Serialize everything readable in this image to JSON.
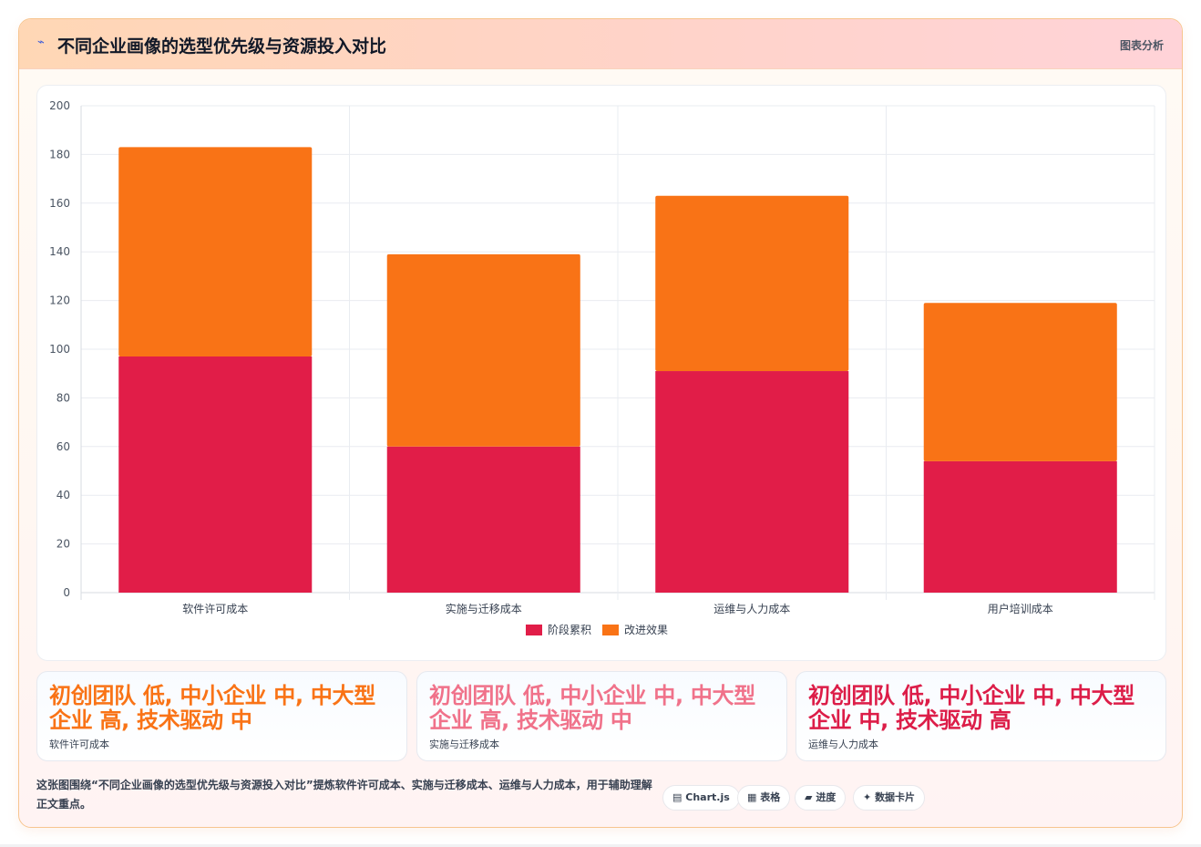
{
  "header": {
    "icon": "⌁",
    "title": "不同企业画像的选型优先级与资源投入对比",
    "tag": "图表分析"
  },
  "chart_data": {
    "type": "bar",
    "stacked": true,
    "categories": [
      "软件许可成本",
      "实施与迁移成本",
      "运维与人力成本",
      "用户培训成本"
    ],
    "series": [
      {
        "name": "阶段累积",
        "color": "#e11d48",
        "values": [
          97,
          60,
          91,
          54
        ]
      },
      {
        "name": "改进效果",
        "color": "#f97316",
        "values": [
          86,
          79,
          72,
          65
        ]
      }
    ],
    "ylim": [
      0,
      200
    ],
    "yticks": [
      0,
      20,
      40,
      60,
      80,
      100,
      120,
      140,
      160,
      180,
      200
    ],
    "grid": true,
    "legend": "bottom"
  },
  "cards": [
    {
      "value": "初创团队 低, 中小企业 中, 中大型企业 高, 技术驱动 中",
      "label": "软件许可成本",
      "color": "#f97316"
    },
    {
      "value": "初创团队 低, 中小企业 中, 中大型企业 高, 技术驱动 中",
      "label": "实施与迁移成本",
      "color": "#f0728a"
    },
    {
      "value": "初创团队 低, 中小企业 中, 中大型企业 中, 技术驱动 高",
      "label": "运维与人力成本",
      "color": "#dc1d48"
    }
  ],
  "footer": {
    "description": "这张图围绕“不同企业画像的选型优先级与资源投入对比”提炼软件许可成本、实施与迁移成本、运维与人力成本，用于辅助理解正文重点。",
    "chips": [
      {
        "icon": "▤",
        "label": "Chart.js"
      },
      {
        "icon": "▦",
        "label": "表格"
      },
      {
        "icon": "▰",
        "label": "进度"
      },
      {
        "icon": "✦",
        "label": "数据卡片"
      }
    ]
  }
}
